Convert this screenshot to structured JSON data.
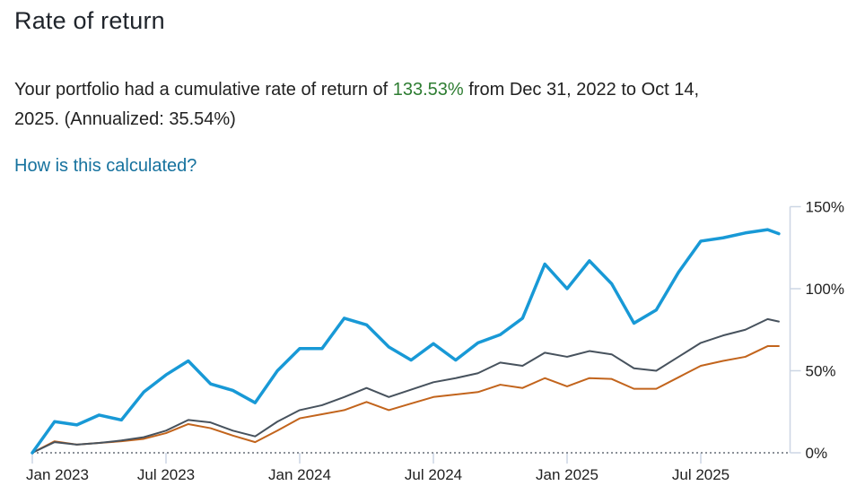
{
  "header": {
    "title": "Rate of return"
  },
  "summary": {
    "prefix": "Your portfolio had a cumulative rate of return of ",
    "highlight": "133.53%",
    "suffix_line1": " from Dec 31, 2022 to Oct 14,",
    "suffix_line2": "2025. (Annualized: 35.54%)"
  },
  "link": {
    "label": "How is this calculated?"
  },
  "chart_data": {
    "type": "line",
    "title": "",
    "legend": "none",
    "y_axis_position": "right",
    "ylim": [
      0,
      150
    ],
    "y_tick_values": [
      0,
      50,
      100,
      150
    ],
    "y_tick_labels": [
      "0%",
      "50%",
      "100%",
      "150%"
    ],
    "x_tick_month_index": [
      0,
      6,
      12,
      18,
      24,
      30
    ],
    "x_tick_labels": [
      "Jan 2023",
      "Jul 2023",
      "Jan 2024",
      "Jul 2024",
      "Jan 2025",
      "Jul 2025"
    ],
    "x_start_date": "Dec 31, 2022",
    "x_end_date": "Oct 14, 2025",
    "zero_line_style": "dotted",
    "x_months": [
      0,
      1,
      2,
      3,
      4,
      5,
      6,
      7,
      8,
      9,
      10,
      11,
      12,
      13,
      14,
      15,
      16,
      17,
      18,
      19,
      20,
      21,
      22,
      23,
      24,
      25,
      26,
      27,
      28,
      29,
      30,
      31,
      32,
      33,
      33.5
    ],
    "series": [
      {
        "name": "portfolio",
        "color": "#1899d6",
        "width": 3.5,
        "final_value": "133.53%",
        "values": [
          0,
          19,
          17,
          23,
          20,
          37,
          47.5,
          56,
          42,
          38,
          30.5,
          50,
          63.5,
          63.5,
          82,
          78,
          64.5,
          56.5,
          66.5,
          56.5,
          67,
          72,
          82,
          115,
          100,
          117,
          103,
          79,
          87,
          110,
          129,
          131,
          134,
          136,
          133.53
        ]
      },
      {
        "name": "benchmark-gray",
        "color": "#47525d",
        "width": 2,
        "values": [
          0,
          6.5,
          5,
          6,
          7.5,
          9.5,
          13.5,
          20,
          18.5,
          13.5,
          10,
          19,
          26,
          29,
          34,
          39.5,
          34,
          38.5,
          43,
          45.5,
          48.5,
          55,
          53,
          61,
          58.5,
          62,
          60,
          51.5,
          50,
          58.5,
          67,
          71.5,
          75,
          81.5,
          80
        ]
      },
      {
        "name": "benchmark-orange",
        "color": "#c2641c",
        "width": 2,
        "values": [
          0,
          7,
          5,
          6,
          7,
          8.5,
          12,
          17.5,
          15,
          10.5,
          6.5,
          13.5,
          21,
          23.5,
          26,
          31,
          26,
          30,
          34,
          35.5,
          37,
          41.5,
          39.5,
          45.5,
          40.5,
          45.5,
          45,
          39,
          39,
          46,
          53,
          56,
          58.5,
          65,
          65
        ]
      }
    ],
    "colors": {
      "axis": "#ccd6e4",
      "zero_line": "#8b9198",
      "tick_text": "#212121",
      "highlight_green": "#2e7d32",
      "link_blue": "#16729e"
    }
  }
}
